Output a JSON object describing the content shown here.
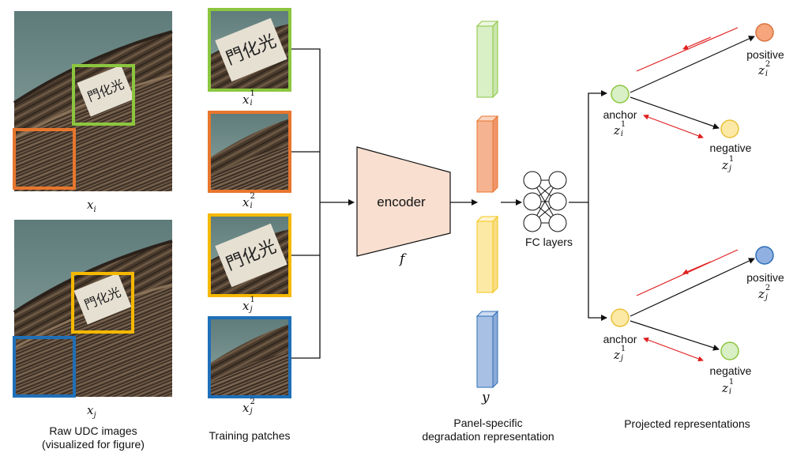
{
  "raw_images": {
    "label_i": {
      "base": "x",
      "sub": "i"
    },
    "label_j": {
      "base": "x",
      "sub": "j"
    },
    "caption_line1": "Raw UDC images",
    "caption_line2": "(visualized for figure)"
  },
  "patches": {
    "items": [
      {
        "base": "x",
        "sub": "i",
        "sup": "1",
        "color": "#8cc63f"
      },
      {
        "base": "x",
        "sub": "i",
        "sup": "2",
        "color": "#e8762d"
      },
      {
        "base": "x",
        "sub": "j",
        "sup": "1",
        "color": "#f5b800"
      },
      {
        "base": "x",
        "sub": "j",
        "sup": "2",
        "color": "#1f6fb8"
      }
    ],
    "caption": "Training patches"
  },
  "encoder": {
    "label": "encoder",
    "symbol": "f",
    "fill": "#f9dfd0"
  },
  "representation": {
    "symbol": "y",
    "caption_line1": "Panel-specific",
    "caption_line2": "degradation representation",
    "bars": [
      {
        "fill": "#d9efc6",
        "edge": "#8cc63f"
      },
      {
        "fill": "#f6b391",
        "edge": "#e8762d"
      },
      {
        "fill": "#fde9a6",
        "edge": "#f5c518"
      },
      {
        "fill": "#a9c0e5",
        "edge": "#2e6fb6"
      }
    ]
  },
  "fc": {
    "label": "FC layers"
  },
  "projected": {
    "caption": "Projected representations",
    "top": {
      "anchor": {
        "label": "anchor",
        "base": "z",
        "sub": "i",
        "sup": "1",
        "color": "#d9efc6",
        "edge": "#8cc63f"
      },
      "positive": {
        "label": "positive",
        "base": "z",
        "sub": "i",
        "sup": "2",
        "color": "#f6a57c",
        "edge": "#d9733e"
      },
      "negative": {
        "label": "negative",
        "base": "z",
        "sub": "j",
        "sup": "1",
        "color": "#fde9a6",
        "edge": "#e8c03a"
      }
    },
    "bottom": {
      "anchor": {
        "label": "anchor",
        "base": "z",
        "sub": "j",
        "sup": "1",
        "color": "#fde9a6",
        "edge": "#e8c03a"
      },
      "positive": {
        "label": "positive",
        "base": "z",
        "sub": "j",
        "sup": "2",
        "color": "#8fb0e0",
        "edge": "#2e6fb6"
      },
      "negative": {
        "label": "negative",
        "base": "z",
        "sub": "i",
        "sup": "1",
        "color": "#d9efc6",
        "edge": "#8cc63f"
      }
    }
  }
}
